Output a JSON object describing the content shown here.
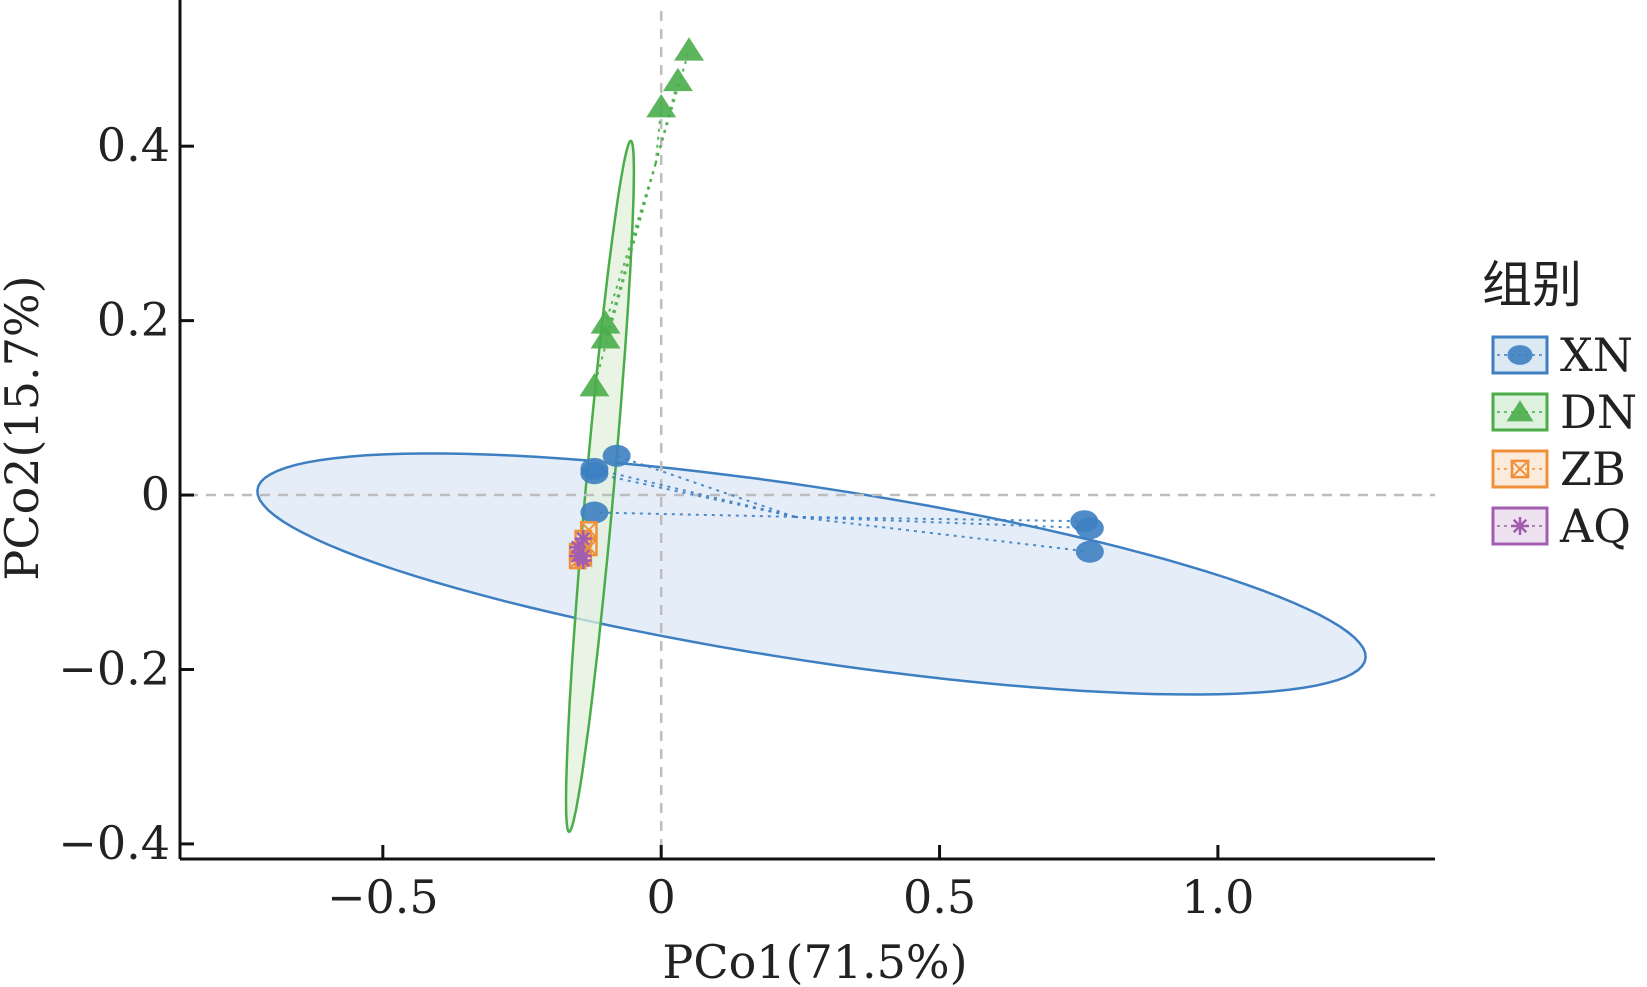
{
  "chart_data": {
    "type": "scatter",
    "title": "",
    "xlabel": "PCo1(71.5%)",
    "ylabel": "PCo2(15.7%)",
    "xlim": [
      -0.85,
      1.39
    ],
    "ylim": [
      -0.415,
      0.555
    ],
    "xticks": [
      -0.5,
      0,
      0.5,
      1.0
    ],
    "xtick_labels": [
      "−0.5",
      "0",
      "0.5",
      "1.0"
    ],
    "yticks": [
      0.4,
      0.2,
      0,
      -0.2,
      -0.4
    ],
    "ytick_labels": [
      "0.4",
      "0.2",
      "0",
      "−0.2",
      "−0.4"
    ],
    "grid": false,
    "reference_lines": {
      "x": 0,
      "y": 0
    },
    "legend": {
      "title": "组别",
      "position": "right",
      "entries": [
        {
          "name": "XN",
          "color": "#3d7fc1",
          "marker": "circle"
        },
        {
          "name": "DN",
          "color": "#4aad4a",
          "marker": "triangle"
        },
        {
          "name": "ZB",
          "color": "#f0903a",
          "marker": "boxed-x"
        },
        {
          "name": "AQ",
          "color": "#a25db0",
          "marker": "asterisk"
        }
      ]
    },
    "series": [
      {
        "name": "XN",
        "centroid": [
          0.24,
          -0.025
        ],
        "points": [
          [
            -0.08,
            0.045
          ],
          [
            -0.12,
            0.03
          ],
          [
            -0.12,
            0.025
          ],
          [
            -0.12,
            -0.02
          ],
          [
            0.76,
            -0.03
          ],
          [
            0.77,
            -0.038
          ],
          [
            0.77,
            -0.065
          ]
        ],
        "ellipse": {
          "center": [
            0.27,
            -0.0905
          ],
          "semi_axes": [
            1.0,
            0.1
          ],
          "angle_deg": -5.5
        },
        "fill": "#dbe7f5"
      },
      {
        "name": "DN",
        "centroid": [
          -0.01,
          0.38
        ],
        "points": [
          [
            0.05,
            0.51
          ],
          [
            0.03,
            0.475
          ],
          [
            0.0,
            0.445
          ],
          [
            -0.1,
            0.197
          ],
          [
            -0.1,
            0.18
          ],
          [
            -0.12,
            0.125
          ]
        ],
        "ellipse": {
          "center": [
            -0.11,
            0.01
          ],
          "semi_axes": [
            0.4,
            0.025
          ],
          "angle_deg": 82
        },
        "fill": "#e3f0dc"
      },
      {
        "name": "ZB",
        "centroid": [
          -0.135,
          -0.065
        ],
        "points": [
          [
            -0.13,
            -0.04
          ],
          [
            -0.14,
            -0.05
          ],
          [
            -0.13,
            -0.06
          ],
          [
            -0.15,
            -0.065
          ],
          [
            -0.14,
            -0.072
          ],
          [
            -0.15,
            -0.075
          ]
        ]
      },
      {
        "name": "AQ",
        "centroid": [
          -0.14,
          -0.065
        ],
        "points": [
          [
            -0.14,
            -0.05
          ],
          [
            -0.15,
            -0.06
          ],
          [
            -0.14,
            -0.07
          ],
          [
            -0.15,
            -0.07
          ],
          [
            -0.14,
            -0.075
          ]
        ]
      }
    ]
  }
}
